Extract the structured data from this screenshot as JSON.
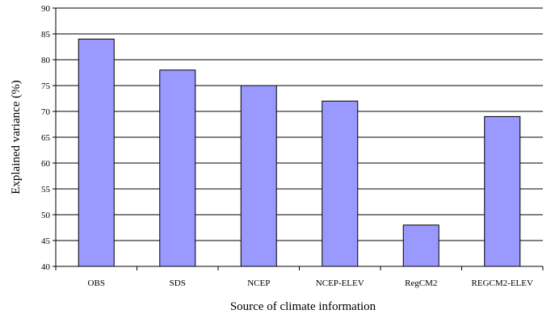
{
  "chart_data": {
    "type": "bar",
    "title": "",
    "xlabel": "Source of climate information",
    "ylabel": "Explained variance (%)",
    "categories": [
      "OBS",
      "SDS",
      "NCEP",
      "NCEP-ELEV",
      "RegCM2",
      "REGCM2-ELEV"
    ],
    "series": [
      {
        "values": [
          84,
          78,
          75,
          72,
          48,
          69
        ]
      }
    ],
    "ylim": [
      40,
      90
    ],
    "yticks": [
      40,
      45,
      50,
      55,
      60,
      65,
      70,
      75,
      80,
      85,
      90
    ],
    "grid": "horizontal",
    "legend": "none",
    "bar_color": "#9999ff",
    "bar_outline": "#000000"
  }
}
